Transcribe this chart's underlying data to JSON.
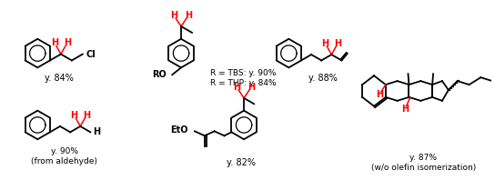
{
  "bg_color": "#ffffff",
  "line_color": "#000000",
  "h_color": "#ff0000",
  "text_color": "#000000",
  "figsize": [
    5.44,
    1.98
  ],
  "dpi": 100,
  "labels": {
    "y84": "y. 84%",
    "y90_ald": "y. 90%\n(from aldehyde)",
    "y88": "y. 88%",
    "r_tbs": "R = TBS: y. 90%\nR = THP: y. 84%",
    "y82": "y. 82%",
    "y87": "y. 87%\n(w/o olefin isomerization)",
    "cl": "Cl",
    "ro": "RO",
    "eto": "EtO"
  }
}
